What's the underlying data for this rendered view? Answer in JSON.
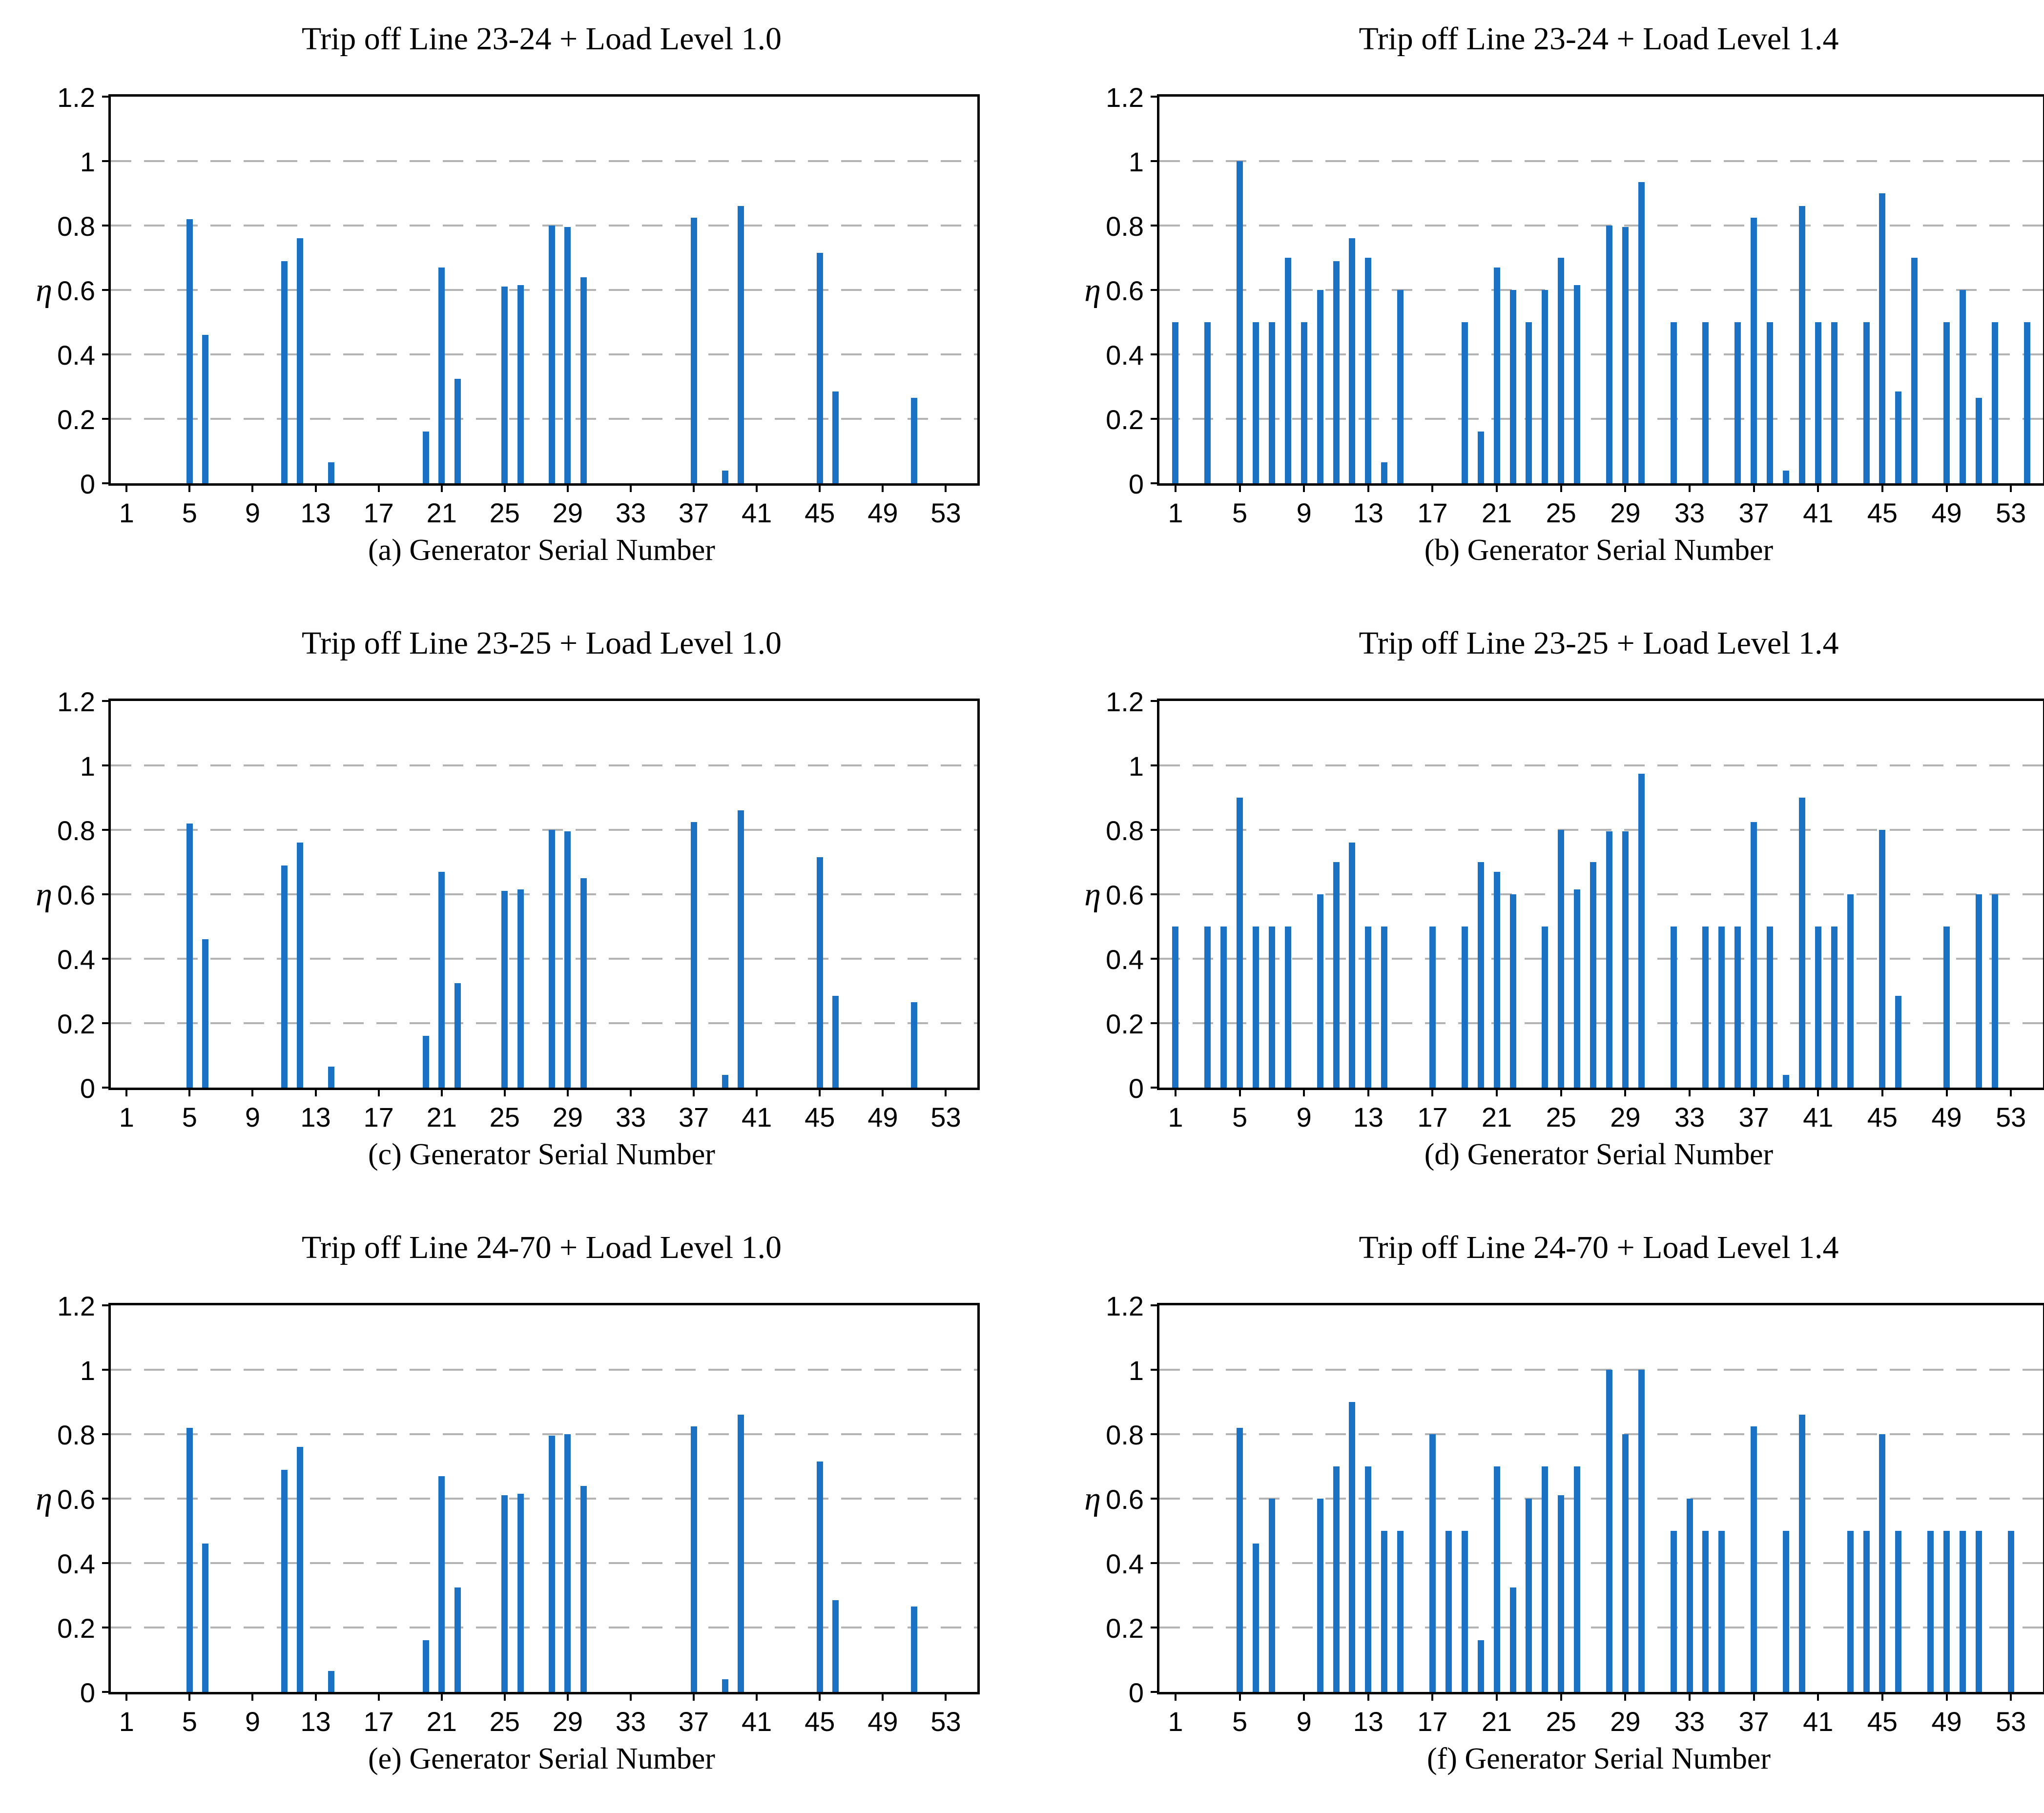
{
  "figure": {
    "ylabel": "η",
    "colors": {
      "bar": "#1b72c4",
      "grid": "#b3b3b3",
      "axis": "#000000"
    },
    "axes": {
      "ymin": 0,
      "ymax": 1.2,
      "yticks": [
        0,
        0.2,
        0.4,
        0.6,
        0.8,
        1,
        1.2
      ],
      "ytick_labels": [
        "0",
        "0.2",
        "0.4",
        "0.6",
        "0.8",
        "1",
        "1.2"
      ],
      "xticks": [
        1,
        5,
        9,
        13,
        17,
        21,
        25,
        29,
        33,
        37,
        41,
        45,
        49,
        53
      ],
      "xmin": 0,
      "xmax": 55,
      "grid": "horizontal dashed at 0.2–1.0"
    }
  },
  "panels": [
    {
      "id": "a",
      "title": "Trip off Line 23-24 + Load Level 1.0",
      "caption": "(a) Generator Serial Number"
    },
    {
      "id": "b",
      "title": "Trip off Line 23-24 + Load Level 1.4",
      "caption": "(b) Generator Serial Number"
    },
    {
      "id": "c",
      "title": "Trip off Line 23-25 + Load Level 1.0",
      "caption": "(c) Generator Serial Number"
    },
    {
      "id": "d",
      "title": "Trip off Line 23-25 + Load Level 1.4",
      "caption": "(d) Generator Serial Number"
    },
    {
      "id": "e",
      "title": "Trip off Line 24-70 + Load Level 1.0",
      "caption": "(e) Generator Serial Number"
    },
    {
      "id": "f",
      "title": "Trip off Line 24-70 + Load Level 1.4",
      "caption": "(f) Generator Serial Number"
    }
  ],
  "chart_data": [
    {
      "type": "bar",
      "title": "Trip off Line 23-24 + Load Level 1.0",
      "xlabel": "(a) Generator Serial Number",
      "ylabel": "η",
      "ylim": [
        0,
        1.2
      ],
      "x": [
        5,
        6,
        11,
        12,
        14,
        20,
        21,
        22,
        25,
        26,
        28,
        29,
        30,
        37,
        39,
        40,
        45,
        46,
        51
      ],
      "values": [
        0.82,
        0.46,
        0.69,
        0.76,
        0.065,
        0.16,
        0.67,
        0.325,
        0.61,
        0.615,
        0.8,
        0.795,
        0.64,
        0.825,
        0.04,
        0.86,
        0.715,
        0.285,
        0.265
      ]
    },
    {
      "type": "bar",
      "title": "Trip off Line 23-24 + Load Level 1.4",
      "xlabel": "(b) Generator Serial Number",
      "ylabel": "η",
      "ylim": [
        0,
        1.2
      ],
      "x": [
        1,
        3,
        5,
        6,
        7,
        8,
        9,
        10,
        11,
        12,
        13,
        14,
        15,
        19,
        20,
        21,
        22,
        23,
        24,
        25,
        26,
        28,
        29,
        30,
        32,
        34,
        36,
        37,
        38,
        39,
        40,
        41,
        42,
        44,
        45,
        46,
        47,
        49,
        50,
        51,
        52,
        54
      ],
      "values": [
        0.5,
        0.5,
        1.0,
        0.5,
        0.5,
        0.7,
        0.5,
        0.6,
        0.69,
        0.76,
        0.7,
        0.065,
        0.6,
        0.5,
        0.16,
        0.67,
        0.6,
        0.5,
        0.6,
        0.7,
        0.615,
        0.8,
        0.795,
        0.935,
        0.5,
        0.5,
        0.5,
        0.825,
        0.5,
        0.04,
        0.86,
        0.5,
        0.5,
        0.5,
        0.9,
        0.285,
        0.7,
        0.5,
        0.6,
        0.265,
        0.5,
        0.5
      ]
    },
    {
      "type": "bar",
      "title": "Trip off Line 23-25 + Load Level 1.0",
      "xlabel": "(c) Generator Serial Number",
      "ylabel": "η",
      "ylim": [
        0,
        1.2
      ],
      "x": [
        5,
        6,
        11,
        12,
        14,
        20,
        21,
        22,
        25,
        26,
        28,
        29,
        30,
        37,
        39,
        40,
        45,
        46,
        51
      ],
      "values": [
        0.82,
        0.46,
        0.69,
        0.76,
        0.065,
        0.16,
        0.67,
        0.325,
        0.61,
        0.615,
        0.8,
        0.795,
        0.65,
        0.825,
        0.04,
        0.86,
        0.715,
        0.285,
        0.265
      ]
    },
    {
      "type": "bar",
      "title": "Trip off Line 23-25 + Load Level 1.4",
      "xlabel": "(d) Generator Serial Number",
      "ylabel": "η",
      "ylim": [
        0,
        1.2
      ],
      "x": [
        1,
        3,
        4,
        5,
        6,
        7,
        8,
        10,
        11,
        12,
        13,
        14,
        17,
        19,
        20,
        21,
        22,
        24,
        25,
        26,
        27,
        28,
        29,
        30,
        32,
        34,
        35,
        36,
        37,
        38,
        39,
        40,
        41,
        42,
        43,
        45,
        46,
        49,
        51,
        52
      ],
      "values": [
        0.5,
        0.5,
        0.5,
        0.9,
        0.5,
        0.5,
        0.5,
        0.6,
        0.7,
        0.76,
        0.5,
        0.5,
        0.5,
        0.5,
        0.7,
        0.67,
        0.6,
        0.5,
        0.8,
        0.615,
        0.7,
        0.795,
        0.795,
        0.975,
        0.5,
        0.5,
        0.5,
        0.5,
        0.825,
        0.5,
        0.04,
        0.9,
        0.5,
        0.5,
        0.6,
        0.8,
        0.285,
        0.5,
        0.6,
        0.6
      ]
    },
    {
      "type": "bar",
      "title": "Trip off Line 24-70 + Load Level 1.0",
      "xlabel": "(e) Generator Serial Number",
      "ylabel": "η",
      "ylim": [
        0,
        1.2
      ],
      "x": [
        5,
        6,
        11,
        12,
        14,
        20,
        21,
        22,
        25,
        26,
        28,
        29,
        30,
        37,
        39,
        40,
        45,
        46,
        51
      ],
      "values": [
        0.82,
        0.46,
        0.69,
        0.76,
        0.065,
        0.16,
        0.67,
        0.325,
        0.61,
        0.615,
        0.795,
        0.8,
        0.64,
        0.825,
        0.04,
        0.86,
        0.715,
        0.285,
        0.265
      ]
    },
    {
      "type": "bar",
      "title": "Trip off Line 24-70 + Load Level 1.4",
      "xlabel": "(f) Generator Serial Number",
      "ylabel": "η",
      "ylim": [
        0,
        1.2
      ],
      "x": [
        5,
        6,
        7,
        10,
        11,
        12,
        13,
        14,
        15,
        17,
        18,
        19,
        20,
        21,
        22,
        23,
        24,
        25,
        26,
        28,
        29,
        30,
        32,
        33,
        34,
        35,
        37,
        39,
        40,
        43,
        44,
        45,
        46,
        48,
        49,
        50,
        51,
        53
      ],
      "values": [
        0.82,
        0.46,
        0.6,
        0.6,
        0.7,
        0.9,
        0.7,
        0.5,
        0.5,
        0.8,
        0.5,
        0.5,
        0.16,
        0.7,
        0.325,
        0.6,
        0.7,
        0.61,
        0.7,
        1.0,
        0.8,
        1.0,
        0.5,
        0.6,
        0.5,
        0.5,
        0.825,
        0.5,
        0.86,
        0.5,
        0.5,
        0.8,
        0.5,
        0.5,
        0.5,
        0.5,
        0.5,
        0.5
      ]
    }
  ]
}
